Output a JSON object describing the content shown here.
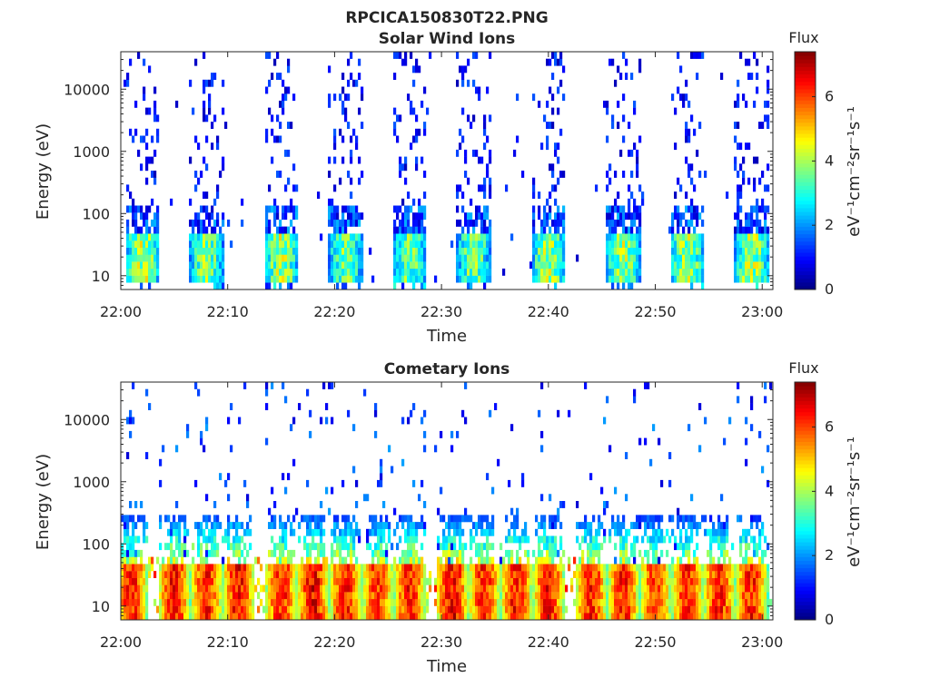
{
  "figure_title": "RPCICA150830T22.PNG",
  "colorbar": {
    "title": "Flux",
    "label": "eV⁻¹cm⁻²sr⁻¹s⁻¹",
    "range": [
      0,
      7.4
    ],
    "ticks": [
      "0",
      "2",
      "4",
      "6"
    ],
    "colormap": "jet"
  },
  "chart_data": [
    {
      "type": "heatmap",
      "title": "Solar Wind Ions",
      "xlabel": "Time",
      "ylabel": "Energy (eV)",
      "y_scale": "log",
      "ylim": [
        6,
        40000
      ],
      "xlim": [
        "22:00",
        "23:01"
      ],
      "x_ticks": [
        "22:00",
        "22:10",
        "22:20",
        "22:30",
        "22:40",
        "22:50",
        "23:00"
      ],
      "y_ticks": [
        "10",
        "100",
        "1000",
        "10000"
      ],
      "bursts": [
        {
          "center_time": "22:02",
          "peak_energy": 30,
          "peak_flux": 5.2
        },
        {
          "center_time": "22:08",
          "peak_energy": 30,
          "peak_flux": 4.8
        },
        {
          "center_time": "22:15",
          "peak_energy": 30,
          "peak_flux": 5.0
        },
        {
          "center_time": "22:21",
          "peak_energy": 30,
          "peak_flux": 4.6
        },
        {
          "center_time": "22:27",
          "peak_energy": 30,
          "peak_flux": 4.5
        },
        {
          "center_time": "22:33",
          "peak_energy": 30,
          "peak_flux": 4.6
        },
        {
          "center_time": "22:40",
          "peak_energy": 30,
          "peak_flux": 5.0
        },
        {
          "center_time": "22:47",
          "peak_energy": 30,
          "peak_flux": 5.0
        },
        {
          "center_time": "22:53",
          "peak_energy": 30,
          "peak_flux": 4.9
        },
        {
          "center_time": "22:59",
          "peak_energy": 30,
          "peak_flux": 5.1
        }
      ]
    },
    {
      "type": "heatmap",
      "title": "Cometary Ions",
      "xlabel": "Time",
      "ylabel": "Energy (eV)",
      "y_scale": "log",
      "ylim": [
        6,
        40000
      ],
      "xlim": [
        "22:00",
        "23:01"
      ],
      "x_ticks": [
        "22:00",
        "22:10",
        "22:20",
        "22:30",
        "22:40",
        "22:50",
        "23:00"
      ],
      "y_ticks": [
        "10",
        "100",
        "1000",
        "10000"
      ],
      "bursts": [
        {
          "center_time": "22:01",
          "peak_energy": 30,
          "peak_flux": 7.0
        },
        {
          "center_time": "22:05",
          "peak_energy": 30,
          "peak_flux": 7.2
        },
        {
          "center_time": "22:08",
          "peak_energy": 30,
          "peak_flux": 7.0
        },
        {
          "center_time": "22:11",
          "peak_energy": 30,
          "peak_flux": 7.2
        },
        {
          "center_time": "22:15",
          "peak_energy": 30,
          "peak_flux": 7.0
        },
        {
          "center_time": "22:18",
          "peak_energy": 30,
          "peak_flux": 7.3
        },
        {
          "center_time": "22:21",
          "peak_energy": 30,
          "peak_flux": 7.0
        },
        {
          "center_time": "22:24",
          "peak_energy": 30,
          "peak_flux": 6.8
        },
        {
          "center_time": "22:27",
          "peak_energy": 30,
          "peak_flux": 7.0
        },
        {
          "center_time": "22:31",
          "peak_energy": 30,
          "peak_flux": 7.3
        },
        {
          "center_time": "22:34",
          "peak_energy": 30,
          "peak_flux": 7.0
        },
        {
          "center_time": "22:37",
          "peak_energy": 30,
          "peak_flux": 7.1
        },
        {
          "center_time": "22:40",
          "peak_energy": 30,
          "peak_flux": 7.1
        },
        {
          "center_time": "22:44",
          "peak_energy": 30,
          "peak_flux": 7.0
        },
        {
          "center_time": "22:47",
          "peak_energy": 30,
          "peak_flux": 7.0
        },
        {
          "center_time": "22:50",
          "peak_energy": 30,
          "peak_flux": 6.8
        },
        {
          "center_time": "22:53",
          "peak_energy": 30,
          "peak_flux": 6.9
        },
        {
          "center_time": "22:56",
          "peak_energy": 30,
          "peak_flux": 7.0
        },
        {
          "center_time": "22:59",
          "peak_energy": 30,
          "peak_flux": 7.0
        }
      ]
    }
  ]
}
